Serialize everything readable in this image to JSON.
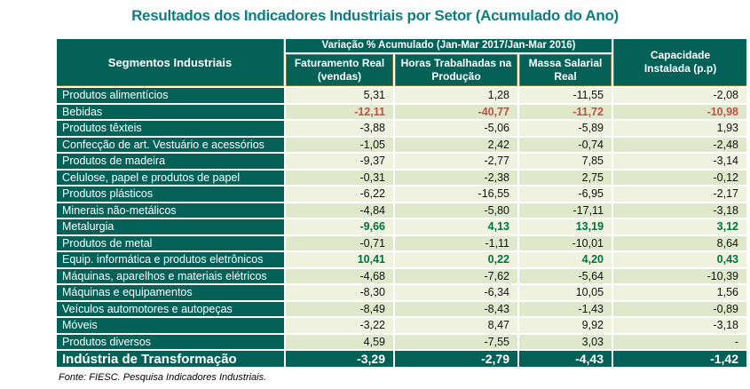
{
  "title": "Resultados dos Indicadores Industriais por Setor (Acumulado do Ano)",
  "source": "Fonte: FIESC. Pesquisa Indicadores Industriais.",
  "colors": {
    "teal": "#046158",
    "title": "#0F7E80",
    "row-light": "#EEF2DF",
    "row-dark": "#DFE8CA",
    "negative": "#BE4F4B",
    "positive": "#00713D",
    "olive": "#7F7C35"
  },
  "table": {
    "header": {
      "segments": "Segmentos Industriais",
      "group": "Variação % Acumulado (Jan-Mar 2017/Jan-Mar 2016)",
      "sub": [
        "Faturamento Real (vendas)",
        "Horas Trabalhadas na Produção",
        "Massa Salarial Real"
      ],
      "capacity": "Capacidade Instalada (p.p)"
    },
    "rows": [
      {
        "label": "Produtos alimentícios",
        "values": [
          "5,31",
          "1,28",
          "-11,55",
          "-2,08"
        ],
        "highlight": "none"
      },
      {
        "label": "Bebidas",
        "values": [
          "-12,11",
          "-40,77",
          "-11,72",
          "-10,98"
        ],
        "highlight": "negative"
      },
      {
        "label": "Produtos têxteis",
        "values": [
          "-3,88",
          "-5,06",
          "-5,89",
          "1,93"
        ],
        "highlight": "none"
      },
      {
        "label": "Confecção de art. Vestuário e acessórios",
        "values": [
          "-1,05",
          "2,42",
          "-0,74",
          "-2,48"
        ],
        "highlight": "none"
      },
      {
        "label": "Produtos de madeira",
        "values": [
          "-9,37",
          "-2,77",
          "7,85",
          "-3,14"
        ],
        "highlight": "none"
      },
      {
        "label": "Celulose, papel e produtos de papel",
        "values": [
          "-0,31",
          "-2,38",
          "2,75",
          "-0,12"
        ],
        "highlight": "none"
      },
      {
        "label": "Produtos plásticos",
        "values": [
          "-6,22",
          "-16,55",
          "-6,95",
          "-2,17"
        ],
        "highlight": "none"
      },
      {
        "label": "Minerais não-metálicos",
        "values": [
          "-4,84",
          "-5,80",
          "-17,11",
          "-3,18"
        ],
        "highlight": "none"
      },
      {
        "label": "Metalurgia",
        "values": [
          "-9,66",
          "4,13",
          "13,19",
          "3,12"
        ],
        "highlight": "positive"
      },
      {
        "label": "Produtos de metal",
        "values": [
          "-0,71",
          "-1,11",
          "-10,01",
          "8,64"
        ],
        "highlight": "none"
      },
      {
        "label": "Equip. informática e produtos eletrônicos",
        "values": [
          "10,41",
          "0,22",
          "4,20",
          "0,43"
        ],
        "highlight": "positive"
      },
      {
        "label": "Máquinas, aparelhos e materiais elétricos",
        "values": [
          "-4,68",
          "-7,62",
          "-5,64",
          "-10,39"
        ],
        "highlight": "none"
      },
      {
        "label": "Máquinas e equipamentos",
        "values": [
          "-8,30",
          "-6,34",
          "10,05",
          "1,56"
        ],
        "highlight": "none"
      },
      {
        "label": "Veículos automotores e autopeças",
        "values": [
          "-8,49",
          "-8,43",
          "-1,43",
          "-0,89"
        ],
        "highlight": "none"
      },
      {
        "label": "Móveis",
        "values": [
          "-3,22",
          "8,47",
          "9,92",
          "-3,18"
        ],
        "highlight": "none"
      },
      {
        "label": "Produtos diversos",
        "values": [
          "4,59",
          "-7,55",
          "3,03",
          "-"
        ],
        "highlight": "none"
      }
    ],
    "total": {
      "label": "Indústria de Transformação",
      "values": [
        "-3,29",
        "-2,79",
        "-4,43",
        "-1,42"
      ]
    }
  },
  "chart_data": {
    "type": "table",
    "title": "Resultados dos Indicadores Industriais por Setor (Acumulado do Ano)",
    "subtitle": "Variação % Acumulado (Jan-Mar 2017/Jan-Mar 2016)",
    "columns": [
      "Segmentos Industriais",
      "Faturamento Real (vendas)",
      "Horas Trabalhadas na Produção",
      "Massa Salarial Real",
      "Capacidade Instalada (p.p)"
    ],
    "categories": [
      "Produtos alimentícios",
      "Bebidas",
      "Produtos têxteis",
      "Confecção de art. Vestuário e acessórios",
      "Produtos de madeira",
      "Celulose, papel e produtos de papel",
      "Produtos plásticos",
      "Minerais não-metálicos",
      "Metalurgia",
      "Produtos de metal",
      "Equip. informática e produtos eletrônicos",
      "Máquinas, aparelhos e materiais elétricos",
      "Máquinas e equipamentos",
      "Veículos automotores e autopeças",
      "Móveis",
      "Produtos diversos",
      "Indústria de Transformação"
    ],
    "series": [
      {
        "name": "Faturamento Real (vendas)",
        "values": [
          5.31,
          -12.11,
          -3.88,
          -1.05,
          -9.37,
          -0.31,
          -6.22,
          -4.84,
          -9.66,
          -0.71,
          10.41,
          -4.68,
          -8.3,
          -8.49,
          -3.22,
          4.59,
          -3.29
        ]
      },
      {
        "name": "Horas Trabalhadas na Produção",
        "values": [
          1.28,
          -40.77,
          -5.06,
          2.42,
          -2.77,
          -2.38,
          -16.55,
          -5.8,
          4.13,
          -1.11,
          0.22,
          -7.62,
          -6.34,
          -8.43,
          8.47,
          -7.55,
          -2.79
        ]
      },
      {
        "name": "Massa Salarial Real",
        "values": [
          -11.55,
          -11.72,
          -5.89,
          -0.74,
          7.85,
          2.75,
          -6.95,
          -17.11,
          13.19,
          -10.01,
          4.2,
          -5.64,
          10.05,
          -1.43,
          9.92,
          3.03,
          -4.43
        ]
      },
      {
        "name": "Capacidade Instalada (p.p)",
        "values": [
          -2.08,
          -10.98,
          1.93,
          -2.48,
          -3.14,
          -0.12,
          -2.17,
          -3.18,
          3.12,
          8.64,
          0.43,
          -10.39,
          1.56,
          -0.89,
          -3.18,
          null,
          -1.42
        ]
      }
    ],
    "annotations": [
      "Fonte: FIESC. Pesquisa Indicadores Industriais."
    ]
  }
}
